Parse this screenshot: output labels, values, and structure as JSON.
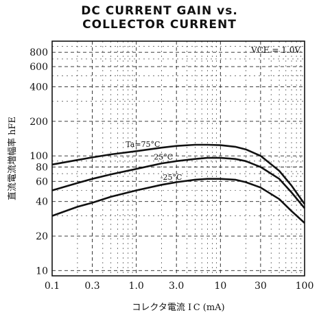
{
  "chart_data": {
    "type": "line",
    "title_lines": [
      "DC CURRENT GAIN vs.",
      "COLLECTOR CURRENT"
    ],
    "xlabel": "コレクタ電流  I C  (mA)",
    "ylabel": "直流電流増幅率  hFE",
    "x_scale": "log",
    "y_scale": "log",
    "xlim": [
      0.1,
      100
    ],
    "ylim": [
      9,
      1000
    ],
    "x_ticks": [
      0.1,
      0.3,
      1.0,
      3.0,
      10,
      30,
      100
    ],
    "x_tick_labels": [
      "0.1",
      "0.3",
      "1.0",
      "3.0",
      "10",
      "30",
      "100"
    ],
    "y_ticks": [
      10,
      20,
      40,
      60,
      80,
      100,
      200,
      400,
      600,
      800
    ],
    "y_tick_labels": [
      "10",
      "20",
      "40",
      "60",
      "80",
      "100",
      "200",
      "400",
      "600",
      "800"
    ],
    "condition_label": "VCE = 1.0V",
    "grid": true,
    "series": [
      {
        "name": "Ta = 75°C",
        "label_text": "Ta=75°C",
        "x": [
          0.1,
          0.2,
          0.3,
          0.5,
          1.0,
          2.0,
          3.0,
          5.0,
          7.0,
          10,
          15,
          20,
          30,
          50,
          70,
          100
        ],
        "y": [
          84,
          92,
          97,
          103,
          110,
          118,
          122,
          125,
          125,
          124,
          120,
          114,
          100,
          74,
          55,
          38
        ]
      },
      {
        "name": "25°C",
        "label_text": "25°C",
        "x": [
          0.1,
          0.2,
          0.3,
          0.5,
          1.0,
          2.0,
          3.0,
          5.0,
          7.0,
          10,
          15,
          20,
          30,
          50,
          70,
          100
        ],
        "y": [
          50,
          58,
          63,
          69,
          77,
          86,
          90,
          94,
          96,
          96,
          94,
          90,
          80,
          63,
          48,
          35
        ]
      },
      {
        "name": "-25°C",
        "label_text": "-25°C",
        "x": [
          0.1,
          0.2,
          0.3,
          0.5,
          1.0,
          2.0,
          3.0,
          5.0,
          7.0,
          10,
          15,
          20,
          30,
          50,
          70,
          100
        ],
        "y": [
          30,
          36,
          39,
          44,
          50,
          56,
          59,
          62,
          63,
          63,
          62,
          59,
          53,
          42,
          33,
          26
        ]
      }
    ]
  }
}
